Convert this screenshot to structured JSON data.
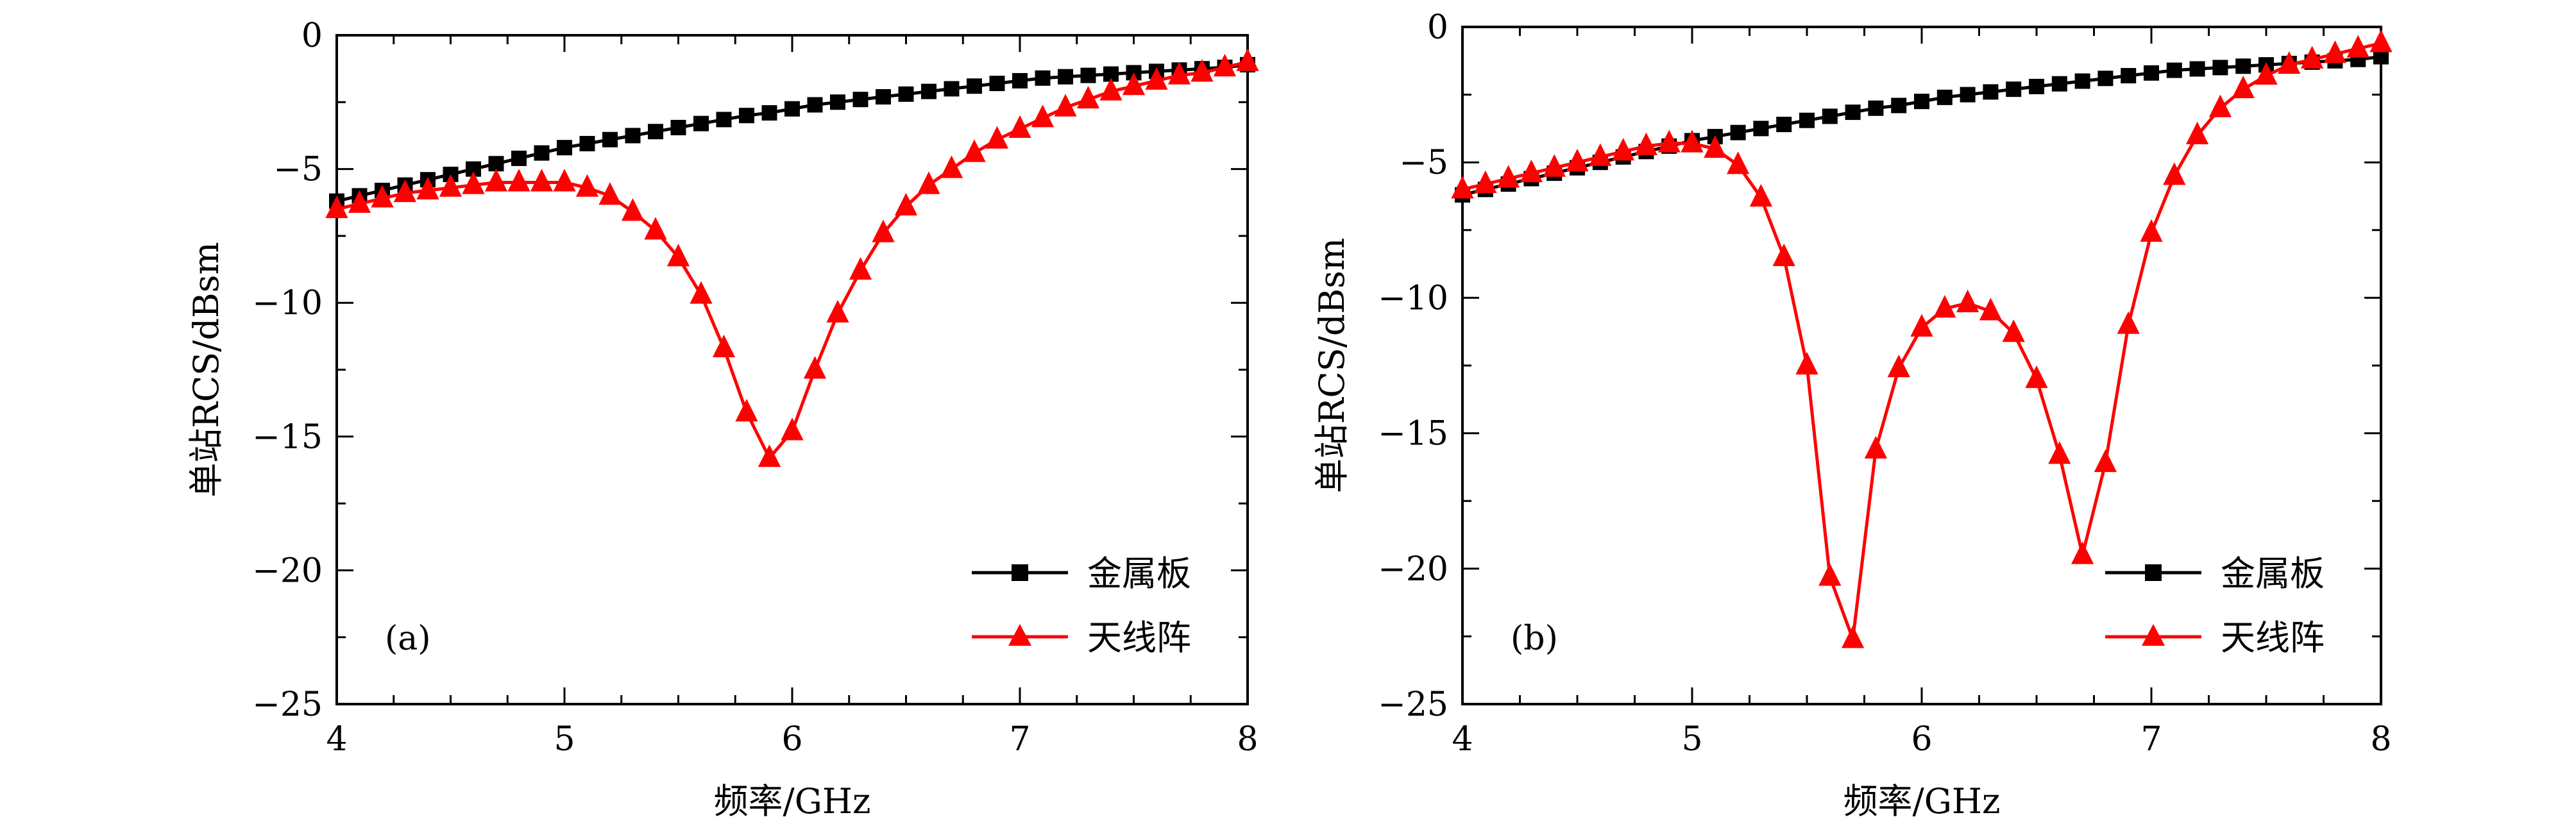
{
  "colors": {
    "metal": "#000000",
    "antenna": "#ff0000",
    "axis": "#000000"
  },
  "chart_data": [
    {
      "type": "line",
      "panel_label": "(a)",
      "xlabel": "频率/GHz",
      "ylabel": "单站RCS/dBsm",
      "xlim": [
        4,
        8
      ],
      "ylim": [
        -25,
        0
      ],
      "xticks": [
        4,
        5,
        6,
        7,
        8
      ],
      "yticks": [
        0,
        -5,
        -10,
        -15,
        -20,
        -25
      ],
      "ytick_labels": [
        "0",
        "−5",
        "−10",
        "−15",
        "−20",
        "−25"
      ],
      "grid": false,
      "legend_position": "bottom-right",
      "series": [
        {
          "name": "金属板",
          "marker": "square",
          "color": "#000000",
          "x": [
            4.0,
            4.1,
            4.2,
            4.3,
            4.4,
            4.5,
            4.6,
            4.7,
            4.8,
            4.9,
            5.0,
            5.1,
            5.2,
            5.3,
            5.4,
            5.5,
            5.6,
            5.7,
            5.8,
            5.9,
            6.0,
            6.1,
            6.2,
            6.3,
            6.4,
            6.5,
            6.6,
            6.7,
            6.8,
            6.9,
            7.0,
            7.1,
            7.2,
            7.3,
            7.4,
            7.5,
            7.6,
            7.7,
            7.8,
            7.9,
            8.0
          ],
          "y": [
            -6.2,
            -6.0,
            -5.8,
            -5.6,
            -5.4,
            -5.2,
            -5.0,
            -4.8,
            -4.6,
            -4.4,
            -4.2,
            -4.05,
            -3.9,
            -3.75,
            -3.6,
            -3.45,
            -3.3,
            -3.15,
            -3.0,
            -2.9,
            -2.75,
            -2.6,
            -2.5,
            -2.4,
            -2.3,
            -2.2,
            -2.1,
            -2.0,
            -1.9,
            -1.8,
            -1.7,
            -1.6,
            -1.55,
            -1.5,
            -1.45,
            -1.4,
            -1.35,
            -1.3,
            -1.25,
            -1.2,
            -1.1
          ]
        },
        {
          "name": "天线阵",
          "marker": "triangle",
          "color": "#ff0000",
          "x": [
            4.0,
            4.1,
            4.2,
            4.3,
            4.4,
            4.5,
            4.6,
            4.7,
            4.8,
            4.9,
            5.0,
            5.1,
            5.2,
            5.3,
            5.4,
            5.5,
            5.6,
            5.7,
            5.8,
            5.9,
            6.0,
            6.1,
            6.2,
            6.3,
            6.4,
            6.5,
            6.6,
            6.7,
            6.8,
            6.9,
            7.0,
            7.1,
            7.2,
            7.3,
            7.4,
            7.5,
            7.6,
            7.7,
            7.8,
            7.9,
            8.0
          ],
          "y": [
            -6.5,
            -6.3,
            -6.1,
            -5.9,
            -5.8,
            -5.7,
            -5.6,
            -5.5,
            -5.5,
            -5.5,
            -5.5,
            -5.7,
            -6.0,
            -6.6,
            -7.3,
            -8.3,
            -9.7,
            -11.7,
            -14.1,
            -15.8,
            -14.8,
            -12.5,
            -10.4,
            -8.8,
            -7.4,
            -6.4,
            -5.6,
            -5.0,
            -4.4,
            -3.9,
            -3.5,
            -3.1,
            -2.7,
            -2.4,
            -2.1,
            -1.9,
            -1.7,
            -1.5,
            -1.4,
            -1.2,
            -1.0
          ]
        }
      ]
    },
    {
      "type": "line",
      "panel_label": "(b)",
      "xlabel": "频率/GHz",
      "ylabel": "单站RCS/dBsm",
      "xlim": [
        4,
        8
      ],
      "ylim": [
        -25,
        0
      ],
      "xticks": [
        4,
        5,
        6,
        7,
        8
      ],
      "yticks": [
        0,
        -5,
        -10,
        -15,
        -20,
        -25
      ],
      "ytick_labels": [
        "0",
        "−5",
        "−10",
        "−15",
        "−20",
        "−25"
      ],
      "grid": false,
      "legend_position": "bottom-right",
      "series": [
        {
          "name": "金属板",
          "marker": "square",
          "color": "#000000",
          "x": [
            4.0,
            4.1,
            4.2,
            4.3,
            4.4,
            4.5,
            4.6,
            4.7,
            4.8,
            4.9,
            5.0,
            5.1,
            5.2,
            5.3,
            5.4,
            5.5,
            5.6,
            5.7,
            5.8,
            5.9,
            6.0,
            6.1,
            6.2,
            6.3,
            6.4,
            6.5,
            6.6,
            6.7,
            6.8,
            6.9,
            7.0,
            7.1,
            7.2,
            7.3,
            7.4,
            7.5,
            7.6,
            7.7,
            7.8,
            7.9,
            8.0
          ],
          "y": [
            -6.2,
            -6.0,
            -5.8,
            -5.6,
            -5.4,
            -5.2,
            -5.0,
            -4.8,
            -4.6,
            -4.4,
            -4.2,
            -4.05,
            -3.9,
            -3.75,
            -3.6,
            -3.45,
            -3.3,
            -3.15,
            -3.0,
            -2.9,
            -2.75,
            -2.6,
            -2.5,
            -2.4,
            -2.3,
            -2.2,
            -2.1,
            -2.0,
            -1.9,
            -1.8,
            -1.7,
            -1.6,
            -1.55,
            -1.5,
            -1.45,
            -1.4,
            -1.35,
            -1.3,
            -1.25,
            -1.2,
            -1.1
          ]
        },
        {
          "name": "天线阵",
          "marker": "triangle",
          "color": "#ff0000",
          "x": [
            4.0,
            4.1,
            4.2,
            4.3,
            4.4,
            4.5,
            4.6,
            4.7,
            4.8,
            4.9,
            5.0,
            5.1,
            5.2,
            5.3,
            5.4,
            5.5,
            5.6,
            5.7,
            5.8,
            5.9,
            6.0,
            6.1,
            6.2,
            6.3,
            6.4,
            6.5,
            6.6,
            6.7,
            6.8,
            6.9,
            7.0,
            7.1,
            7.2,
            7.3,
            7.4,
            7.5,
            7.6,
            7.7,
            7.8,
            7.9,
            8.0
          ],
          "y": [
            -6.0,
            -5.8,
            -5.6,
            -5.4,
            -5.2,
            -5.0,
            -4.8,
            -4.6,
            -4.4,
            -4.3,
            -4.3,
            -4.5,
            -5.1,
            -6.3,
            -8.5,
            -12.5,
            -20.3,
            -22.6,
            -15.6,
            -12.6,
            -11.1,
            -10.4,
            -10.2,
            -10.5,
            -11.3,
            -13.0,
            -15.8,
            -19.5,
            -16.1,
            -11.0,
            -7.6,
            -5.5,
            -4.0,
            -3.0,
            -2.3,
            -1.8,
            -1.4,
            -1.2,
            -1.0,
            -0.8,
            -0.6
          ]
        }
      ]
    }
  ]
}
